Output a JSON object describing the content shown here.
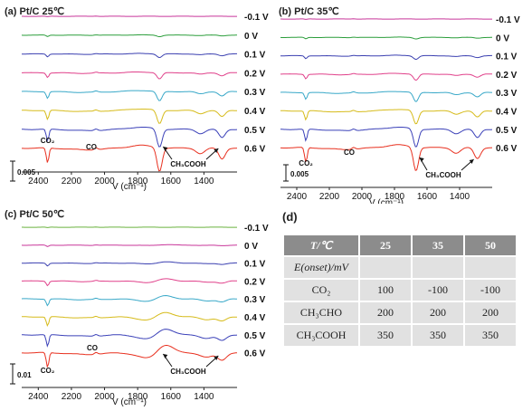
{
  "panels": [
    {
      "title": "(a) Pt/C 25℃",
      "potentials": [
        "-0.1 V",
        "0 V",
        "0.1 V",
        "0.2 V",
        "0.3 V",
        "0.4 V",
        "0.5 V",
        "0.6 V"
      ],
      "xlabel": "V (cm⁻¹)",
      "xticks": [
        "2400",
        "2200",
        "2000",
        "1800",
        "1600",
        "1400"
      ],
      "scale": "0.005",
      "annotations": {
        "co2": "CO₂",
        "co": "CO",
        "acid": "CH₃COOH"
      }
    },
    {
      "title": "(b) Pt/C 35℃",
      "potentials": [
        "-0.1 V",
        "0 V",
        "0.1 V",
        "0.2 V",
        "0.3 V",
        "0.4 V",
        "0.5 V",
        "0.6 V"
      ],
      "xlabel": "V (cm⁻¹)",
      "xticks": [
        "2400",
        "2200",
        "2000",
        "1800",
        "1600",
        "1400"
      ],
      "scale": "0.005",
      "annotations": {
        "co2": "CO₂",
        "co": "CO",
        "acid": "CH₃COOH"
      }
    },
    {
      "title": "(c) Pt/C 50℃",
      "potentials": [
        "-0.1 V",
        "0 V",
        "0.1 V",
        "0.2 V",
        "0.3 V",
        "0.4 V",
        "0.5 V",
        "0.6 V"
      ],
      "xlabel": "V (cm⁻¹)",
      "xticks": [
        "2400",
        "2200",
        "2000",
        "1800",
        "1600",
        "1400"
      ],
      "scale": "0.01",
      "annotations": {
        "co2": "CO₂",
        "co": "CO",
        "acid": "CH₃COOH"
      }
    }
  ],
  "table": {
    "label": "(d)",
    "header": [
      "T/℃",
      "25",
      "35",
      "50"
    ],
    "rows": [
      [
        "E(onset)/mV",
        "",
        "",
        ""
      ],
      [
        "CO₂",
        "100",
        "-100",
        "-100"
      ],
      [
        "CH₃CHO",
        "200",
        "200",
        "200"
      ],
      [
        "CH₃COOH",
        "350",
        "350",
        "350"
      ]
    ]
  },
  "chart_data": [
    {
      "type": "line",
      "title": "(a) Pt/C 25℃",
      "xlabel": "V (cm⁻¹)",
      "xlim": [
        2500,
        1200
      ],
      "series_names": [
        "-0.1 V",
        "0 V",
        "0.1 V",
        "0.2 V",
        "0.3 V",
        "0.4 V",
        "0.5 V",
        "0.6 V"
      ],
      "colors": [
        "#c8369a",
        "#2a9d3a",
        "#3a3fb0",
        "#e0408a",
        "#38a8c8",
        "#d6bb1a",
        "#3a40b8",
        "#e8301f"
      ],
      "features": {
        "co2_band": 2343,
        "co_band": 2048,
        "acid_bands": [
          1714,
          1280
        ]
      }
    },
    {
      "type": "line",
      "title": "(b) Pt/C 35℃",
      "xlabel": "V (cm⁻¹)",
      "xlim": [
        2500,
        1200
      ],
      "series_names": [
        "-0.1 V",
        "0 V",
        "0.1 V",
        "0.2 V",
        "0.3 V",
        "0.4 V",
        "0.5 V",
        "0.6 V"
      ],
      "colors": [
        "#c8369a",
        "#2a9d3a",
        "#3a3fb0",
        "#e0408a",
        "#38a8c8",
        "#d6bb1a",
        "#3a40b8",
        "#e8301f"
      ],
      "features": {
        "co2_band": 2343,
        "co_band": 2048,
        "acid_bands": [
          1714,
          1280
        ]
      }
    },
    {
      "type": "line",
      "title": "(c) Pt/C 50℃",
      "xlabel": "V (cm⁻¹)",
      "xlim": [
        2500,
        1200
      ],
      "series_names": [
        "-0.1 V",
        "0 V",
        "0.1 V",
        "0.2 V",
        "0.3 V",
        "0.4 V",
        "0.5 V",
        "0.6 V"
      ],
      "colors": [
        "#6ab23e",
        "#c8369a",
        "#3a3fb0",
        "#e0408a",
        "#38a8c8",
        "#d6bb1a",
        "#3a40b8",
        "#e8301f"
      ],
      "features": {
        "co2_band": 2343,
        "co_band": 2048,
        "acid_bands": [
          1714,
          1280
        ]
      }
    }
  ]
}
